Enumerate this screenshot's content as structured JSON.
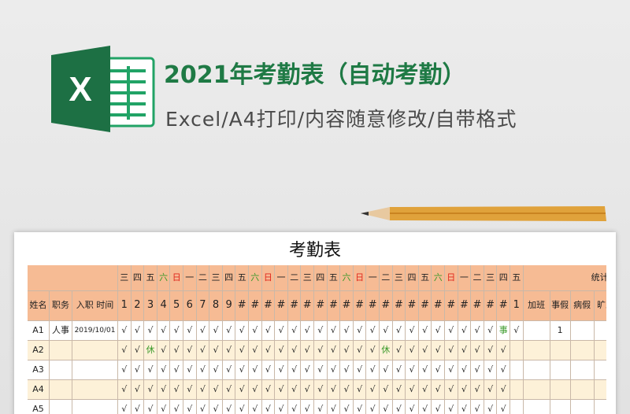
{
  "header": {
    "title": "2021年考勤表（自动考勤）",
    "subtitle": "Excel/A4打印/内容随意修改/自带格式",
    "icon_letter": "X"
  },
  "sheet": {
    "title": "考勤表",
    "weekdays": [
      "三",
      "四",
      "五",
      "六",
      "日",
      "一",
      "二",
      "三",
      "四",
      "五",
      "六",
      "日",
      "一",
      "二",
      "三",
      "四",
      "五",
      "六",
      "日",
      "一",
      "二",
      "三",
      "四",
      "五",
      "六",
      "日",
      "一",
      "二",
      "三",
      "四",
      "五"
    ],
    "weekday_colors": {
      "六": "#3a9a2a",
      "日": "#e0261b"
    },
    "days": [
      "1",
      "2",
      "3",
      "4",
      "5",
      "6",
      "7",
      "8",
      "9",
      "#",
      "#",
      "#",
      "#",
      "#",
      "#",
      "#",
      "#",
      "#",
      "#",
      "#",
      "#",
      "#",
      "#",
      "#",
      "#",
      "#",
      "#",
      "#",
      "#",
      "#",
      "1"
    ],
    "columns": [
      "姓名",
      "职务",
      "入职 时间"
    ],
    "stats_title": "统计区",
    "stats_columns": [
      "加班",
      "事假",
      "病假",
      "旷工"
    ],
    "mark_colors": {
      "休": "#3a9a2a",
      "事": "#3a9a2a"
    },
    "rows": [
      {
        "name": "A1",
        "role": "人事",
        "start": "2019/10/01",
        "marks": [
          "√",
          "√",
          "√",
          "√",
          "√",
          "√",
          "√",
          "√",
          "√",
          "√",
          "√",
          "√",
          "√",
          "√",
          "√",
          "√",
          "√",
          "√",
          "√",
          "√",
          "√",
          "√",
          "√",
          "√",
          "√",
          "√",
          "√",
          "√",
          "√",
          "事",
          "√"
        ],
        "stats": [
          null,
          1,
          null,
          null
        ]
      },
      {
        "name": "A2",
        "role": null,
        "start": null,
        "marks": [
          "√",
          "√",
          "休",
          "√",
          "√",
          "√",
          "√",
          "√",
          "√",
          "√",
          "√",
          "√",
          "√",
          "√",
          "√",
          "√",
          "√",
          "√",
          "√",
          "√",
          "休",
          "√",
          "√",
          "√",
          "√",
          "√",
          "√",
          "√",
          "√",
          "√",
          null
        ],
        "stats": [
          null,
          null,
          null,
          null
        ]
      },
      {
        "name": "A3",
        "role": null,
        "start": null,
        "marks": [
          "√",
          "√",
          "√",
          "√",
          "√",
          "√",
          "√",
          "√",
          "√",
          "√",
          "√",
          "√",
          "√",
          "√",
          "√",
          "√",
          "√",
          "√",
          "√",
          "√",
          "√",
          "√",
          "√",
          "√",
          "√",
          "√",
          "√",
          "√",
          "√",
          "√",
          null
        ],
        "stats": [
          null,
          null,
          null,
          null
        ]
      },
      {
        "name": "A4",
        "role": null,
        "start": null,
        "marks": [
          "√",
          "√",
          "√",
          "√",
          "√",
          "√",
          "√",
          "√",
          "√",
          "√",
          "√",
          "√",
          "√",
          "√",
          "√",
          "√",
          "√",
          "√",
          "√",
          "√",
          "√",
          "√",
          "√",
          "√",
          "√",
          "√",
          "√",
          "√",
          "√",
          "√",
          null
        ],
        "stats": [
          null,
          null,
          null,
          null
        ]
      },
      {
        "name": "A5",
        "role": null,
        "start": null,
        "marks": [
          "√",
          "√",
          "√",
          "√",
          "√",
          "√",
          "√",
          "√",
          "√",
          "√",
          "√",
          "√",
          "√",
          "√",
          "√",
          "√",
          "√",
          "√",
          "√",
          "√",
          "√",
          "√",
          "√",
          "√",
          "√",
          "√",
          "√",
          "√",
          "√",
          "√",
          null
        ],
        "stats": [
          null,
          null,
          null,
          null
        ]
      }
    ]
  }
}
